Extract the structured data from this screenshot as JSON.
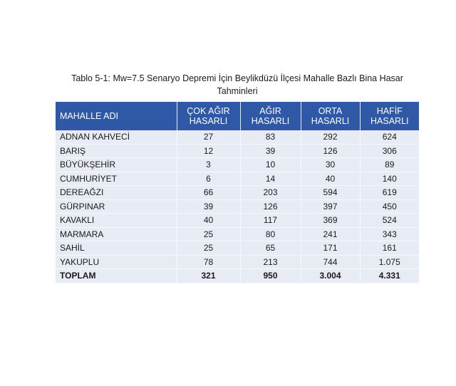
{
  "title_line1": "Tablo 5-1: Mw=7.5 Senaryo Depremi İçin Beylikdüzü İlçesi Mahalle Bazlı Bina Hasar",
  "title_line2": "Tahminleri",
  "headers": [
    {
      "l1": "MAHALLE ADI",
      "l2": ""
    },
    {
      "l1": "ÇOK AĞIR",
      "l2": "HASARLI"
    },
    {
      "l1": "AĞIR",
      "l2": "HASARLI"
    },
    {
      "l1": "ORTA",
      "l2": "HASARLI"
    },
    {
      "l1": "HAFİF",
      "l2": "HASARLI"
    }
  ],
  "rows": [
    [
      "ADNAN KAHVECİ",
      "27",
      "83",
      "292",
      "624"
    ],
    [
      "BARIŞ",
      "12",
      "39",
      "126",
      "306"
    ],
    [
      "BÜYÜKŞEHİR",
      "3",
      "10",
      "30",
      "89"
    ],
    [
      "CUMHURİYET",
      "6",
      "14",
      "40",
      "140"
    ],
    [
      "DEREAĞZI",
      "66",
      "203",
      "594",
      "619"
    ],
    [
      "GÜRPINAR",
      "39",
      "126",
      "397",
      "450"
    ],
    [
      "KAVAKLI",
      "40",
      "117",
      "369",
      "524"
    ],
    [
      "MARMARA",
      "25",
      "80",
      "241",
      "343"
    ],
    [
      "SAHİL",
      "25",
      "65",
      "171",
      "161"
    ],
    [
      "YAKUPLU",
      "78",
      "213",
      "744",
      "1.075"
    ]
  ],
  "total": [
    "TOPLAM",
    "321",
    "950",
    "3.004",
    "4.331"
  ]
}
